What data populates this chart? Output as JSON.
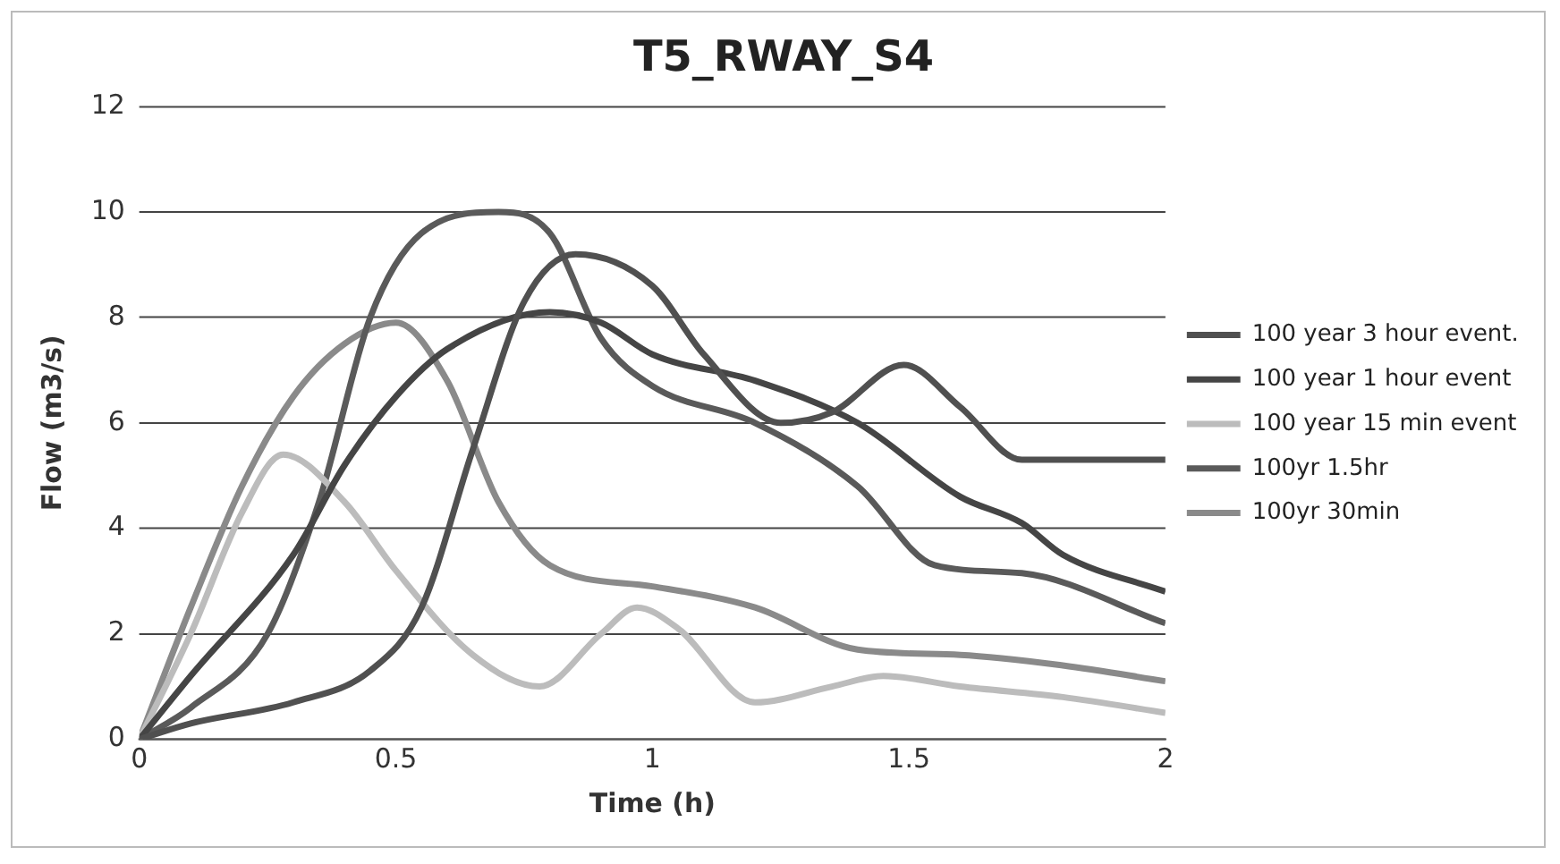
{
  "chart_data": {
    "type": "line",
    "title": "T5_RWAY_S4",
    "xlabel": "Time (h)",
    "ylabel": "Flow (m3/s)",
    "xlim": [
      0,
      2
    ],
    "xticks": [
      0,
      0.5,
      1,
      1.5,
      2
    ],
    "ylim": [
      0,
      12
    ],
    "yticks": [
      0,
      2,
      4,
      6,
      8,
      10,
      12
    ],
    "grid": "y",
    "legend": "right",
    "marker": "none",
    "series": [
      {
        "name": "100 year 3 hour event.",
        "color": "#505050",
        "x": [
          0,
          0.1,
          0.3,
          0.45,
          0.55,
          0.65,
          0.75,
          0.85,
          1.0,
          1.1,
          1.25,
          1.35,
          1.49,
          1.6,
          1.72,
          1.85,
          2
        ],
        "values": [
          0,
          0.3,
          0.7,
          1.3,
          2.5,
          5.5,
          8.3,
          9.2,
          8.6,
          7.3,
          6.0,
          6.2,
          7.1,
          6.3,
          5.3,
          5.3,
          5.3
        ]
      },
      {
        "name": "100 year 1 hour event",
        "color": "#454545",
        "x": [
          0,
          0.1,
          0.3,
          0.4,
          0.5,
          0.6,
          0.8,
          0.9,
          1.0,
          1.2,
          1.4,
          1.6,
          1.72,
          1.8,
          2
        ],
        "values": [
          0,
          1.2,
          3.5,
          5.2,
          6.5,
          7.4,
          8.1,
          7.9,
          7.3,
          6.8,
          6.0,
          4.6,
          4.1,
          3.5,
          2.8
        ]
      },
      {
        "name": "100 year 15 min event",
        "color": "#bcbcbc",
        "x": [
          0,
          0.1,
          0.2,
          0.28,
          0.4,
          0.5,
          0.65,
          0.78,
          0.9,
          0.97,
          1.05,
          1.2,
          1.35,
          1.45,
          1.6,
          1.8,
          2
        ],
        "values": [
          0,
          2,
          4.3,
          5.4,
          4.5,
          3.2,
          1.6,
          1.0,
          2.0,
          2.5,
          2.1,
          0.7,
          1.0,
          1.2,
          1.0,
          0.8,
          0.5
        ]
      },
      {
        "name": "100yr 1.5hr",
        "color": "#5a5a5a",
        "x": [
          0,
          0.1,
          0.25,
          0.35,
          0.45,
          0.55,
          0.7,
          0.8,
          0.9,
          1.0,
          1.2,
          1.4,
          1.55,
          1.72,
          2
        ],
        "values": [
          0,
          0.6,
          2,
          4.5,
          8,
          9.6,
          10,
          9.6,
          7.6,
          6.7,
          6.0,
          4.8,
          3.3,
          3.15,
          2.2
        ]
      },
      {
        "name": "100yr 30min",
        "color": "#8a8a8a",
        "x": [
          0,
          0.1,
          0.2,
          0.3,
          0.4,
          0.5,
          0.6,
          0.7,
          0.8,
          1.0,
          1.2,
          1.4,
          1.6,
          1.8,
          2
        ],
        "values": [
          0,
          2.5,
          4.8,
          6.5,
          7.5,
          7.9,
          6.8,
          4.5,
          3.3,
          2.9,
          2.5,
          1.7,
          1.6,
          1.4,
          1.1
        ]
      }
    ]
  }
}
